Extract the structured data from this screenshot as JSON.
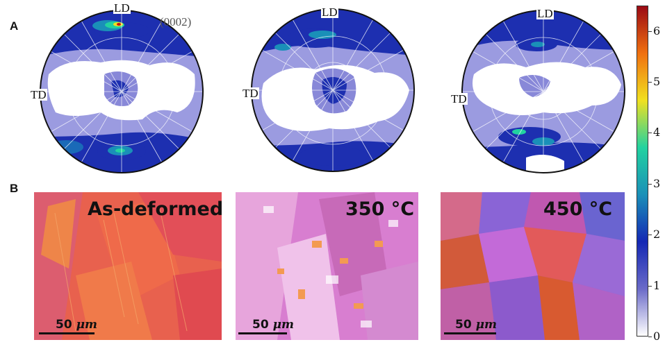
{
  "panels": {
    "a": "A",
    "b": "B"
  },
  "pole_figures": [
    {
      "ld": "LD",
      "td": "TD",
      "plane": "(0002)"
    },
    {
      "ld": "LD",
      "td": "TD"
    },
    {
      "ld": "LD",
      "td": "TD"
    }
  ],
  "micrographs": [
    {
      "title": "As-deformed",
      "scale_value": "50",
      "scale_unit": "μm"
    },
    {
      "title": "350 °C",
      "scale_value": "50",
      "scale_unit": "μm"
    },
    {
      "title": "450 °C",
      "scale_value": "50",
      "scale_unit": "μm"
    }
  ],
  "colorbar": {
    "ticks": [
      "6",
      "5",
      "4",
      "3",
      "2",
      "1",
      "0"
    ],
    "tick_values": [
      6,
      5,
      4,
      3,
      2,
      1,
      0
    ],
    "range": [
      0,
      6.5
    ],
    "colors": [
      "#ffffff",
      "#6a6ac8",
      "#1428b4",
      "#1a90b8",
      "#22d2a0",
      "#f0e020",
      "#f07010",
      "#9a0a14"
    ]
  }
}
